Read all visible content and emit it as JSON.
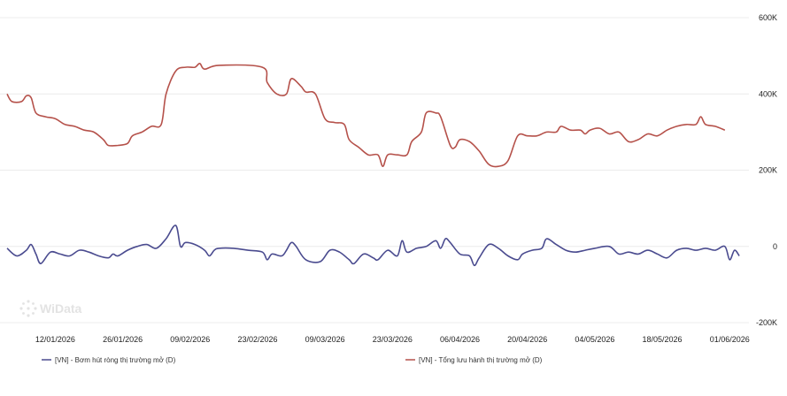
{
  "watermark": "WiData",
  "colors": {
    "outstanding": "#b5514a",
    "net": "#4a4b8f",
    "grid": "#ececec"
  },
  "chart_data": {
    "type": "line",
    "title": "",
    "xlabel": "",
    "ylabel": "",
    "ylim": [
      -200000,
      600000
    ],
    "y_ticks": [
      {
        "value": 600000,
        "label": "600K"
      },
      {
        "value": 400000,
        "label": "400K"
      },
      {
        "value": 200000,
        "label": "200K"
      },
      {
        "value": 0,
        "label": "0"
      },
      {
        "value": -200000,
        "label": "-200K"
      }
    ],
    "x_range": [
      "2026-01-02",
      "2026-06-05"
    ],
    "x_ticks": [
      "12/01/2026",
      "26/01/2026",
      "09/02/2026",
      "23/02/2026",
      "09/03/2026",
      "23/03/2026",
      "06/04/2026",
      "20/04/2026",
      "04/05/2026",
      "18/05/2026",
      "01/06/2026"
    ],
    "grid": "horizontal",
    "legend_position": "bottom",
    "series": [
      {
        "name": "[VN] - Bơm hút ròng thị trường mở (D)",
        "color": "#4a4b8f",
        "points": [
          [
            "2026-01-02",
            -5000
          ],
          [
            "2026-01-04",
            -25000
          ],
          [
            "2026-01-06",
            -10000
          ],
          [
            "2026-01-07",
            5000
          ],
          [
            "2026-01-08",
            -20000
          ],
          [
            "2026-01-09",
            -45000
          ],
          [
            "2026-01-11",
            -15000
          ],
          [
            "2026-01-13",
            -20000
          ],
          [
            "2026-01-15",
            -25000
          ],
          [
            "2026-01-17",
            -10000
          ],
          [
            "2026-01-19",
            -15000
          ],
          [
            "2026-01-21",
            -25000
          ],
          [
            "2026-01-23",
            -30000
          ],
          [
            "2026-01-24",
            -20000
          ],
          [
            "2026-01-25",
            -25000
          ],
          [
            "2026-01-27",
            -10000
          ],
          [
            "2026-01-29",
            0
          ],
          [
            "2026-01-31",
            5000
          ],
          [
            "2026-02-02",
            -5000
          ],
          [
            "2026-02-04",
            20000
          ],
          [
            "2026-02-06",
            55000
          ],
          [
            "2026-02-07",
            0
          ],
          [
            "2026-02-08",
            10000
          ],
          [
            "2026-02-10",
            5000
          ],
          [
            "2026-02-12",
            -10000
          ],
          [
            "2026-02-13",
            -25000
          ],
          [
            "2026-02-14",
            -10000
          ],
          [
            "2026-02-15",
            -5000
          ],
          [
            "2026-02-18",
            -5000
          ],
          [
            "2026-02-21",
            -10000
          ],
          [
            "2026-02-24",
            -15000
          ],
          [
            "2026-02-25",
            -35000
          ],
          [
            "2026-02-26",
            -20000
          ],
          [
            "2026-02-28",
            -25000
          ],
          [
            "2026-03-01",
            -10000
          ],
          [
            "2026-03-02",
            10000
          ],
          [
            "2026-03-03",
            0
          ],
          [
            "2026-03-05",
            -35000
          ],
          [
            "2026-03-08",
            -40000
          ],
          [
            "2026-03-10",
            -10000
          ],
          [
            "2026-03-12",
            -15000
          ],
          [
            "2026-03-14",
            -35000
          ],
          [
            "2026-03-15",
            -45000
          ],
          [
            "2026-03-17",
            -20000
          ],
          [
            "2026-03-19",
            -30000
          ],
          [
            "2026-03-20",
            -35000
          ],
          [
            "2026-03-22",
            -10000
          ],
          [
            "2026-03-24",
            -25000
          ],
          [
            "2026-03-25",
            15000
          ],
          [
            "2026-03-26",
            -15000
          ],
          [
            "2026-03-28",
            -5000
          ],
          [
            "2026-03-30",
            0
          ],
          [
            "2026-04-01",
            15000
          ],
          [
            "2026-04-02",
            -5000
          ],
          [
            "2026-04-03",
            20000
          ],
          [
            "2026-04-04",
            10000
          ],
          [
            "2026-04-06",
            -20000
          ],
          [
            "2026-04-08",
            -25000
          ],
          [
            "2026-04-09",
            -50000
          ],
          [
            "2026-04-10",
            -30000
          ],
          [
            "2026-04-12",
            5000
          ],
          [
            "2026-04-14",
            -5000
          ],
          [
            "2026-04-16",
            -25000
          ],
          [
            "2026-04-18",
            -35000
          ],
          [
            "2026-04-19",
            -20000
          ],
          [
            "2026-04-21",
            -10000
          ],
          [
            "2026-04-23",
            -5000
          ],
          [
            "2026-04-24",
            20000
          ],
          [
            "2026-04-26",
            5000
          ],
          [
            "2026-04-28",
            -10000
          ],
          [
            "2026-04-30",
            -15000
          ],
          [
            "2026-05-02",
            -10000
          ],
          [
            "2026-05-04",
            -5000
          ],
          [
            "2026-05-07",
            0
          ],
          [
            "2026-05-09",
            -20000
          ],
          [
            "2026-05-11",
            -15000
          ],
          [
            "2026-05-13",
            -20000
          ],
          [
            "2026-05-15",
            -10000
          ],
          [
            "2026-05-17",
            -20000
          ],
          [
            "2026-05-19",
            -30000
          ],
          [
            "2026-05-21",
            -10000
          ],
          [
            "2026-05-23",
            -5000
          ],
          [
            "2026-05-25",
            -10000
          ],
          [
            "2026-05-27",
            -5000
          ],
          [
            "2026-05-29",
            -10000
          ],
          [
            "2026-05-31",
            0
          ],
          [
            "2026-06-01",
            -35000
          ],
          [
            "2026-06-02",
            -10000
          ],
          [
            "2026-06-03",
            -25000
          ]
        ]
      },
      {
        "name": "[VN] - Tổng lưu hành thị trường mở (D)",
        "color": "#b5514a",
        "points": [
          [
            "2026-01-02",
            400000
          ],
          [
            "2026-01-03",
            380000
          ],
          [
            "2026-01-05",
            380000
          ],
          [
            "2026-01-06",
            395000
          ],
          [
            "2026-01-07",
            390000
          ],
          [
            "2026-01-08",
            350000
          ],
          [
            "2026-01-10",
            340000
          ],
          [
            "2026-01-12",
            335000
          ],
          [
            "2026-01-14",
            320000
          ],
          [
            "2026-01-16",
            315000
          ],
          [
            "2026-01-18",
            305000
          ],
          [
            "2026-01-20",
            300000
          ],
          [
            "2026-01-22",
            280000
          ],
          [
            "2026-01-23",
            265000
          ],
          [
            "2026-01-25",
            265000
          ],
          [
            "2026-01-27",
            270000
          ],
          [
            "2026-01-28",
            290000
          ],
          [
            "2026-01-30",
            300000
          ],
          [
            "2026-02-01",
            315000
          ],
          [
            "2026-02-03",
            320000
          ],
          [
            "2026-02-04",
            400000
          ],
          [
            "2026-02-06",
            460000
          ],
          [
            "2026-02-08",
            470000
          ],
          [
            "2026-02-10",
            470000
          ],
          [
            "2026-02-11",
            480000
          ],
          [
            "2026-02-12",
            465000
          ],
          [
            "2026-02-15",
            475000
          ],
          [
            "2026-02-24",
            470000
          ],
          [
            "2026-02-25",
            430000
          ],
          [
            "2026-02-27",
            400000
          ],
          [
            "2026-03-01",
            400000
          ],
          [
            "2026-03-02",
            440000
          ],
          [
            "2026-03-04",
            420000
          ],
          [
            "2026-03-05",
            405000
          ],
          [
            "2026-03-07",
            400000
          ],
          [
            "2026-03-09",
            335000
          ],
          [
            "2026-03-11",
            325000
          ],
          [
            "2026-03-13",
            320000
          ],
          [
            "2026-03-14",
            280000
          ],
          [
            "2026-03-16",
            260000
          ],
          [
            "2026-03-18",
            240000
          ],
          [
            "2026-03-20",
            240000
          ],
          [
            "2026-03-21",
            210000
          ],
          [
            "2026-03-22",
            240000
          ],
          [
            "2026-03-24",
            240000
          ],
          [
            "2026-03-26",
            240000
          ],
          [
            "2026-03-27",
            275000
          ],
          [
            "2026-03-29",
            300000
          ],
          [
            "2026-03-30",
            350000
          ],
          [
            "2026-04-01",
            350000
          ],
          [
            "2026-04-02",
            340000
          ],
          [
            "2026-04-04",
            265000
          ],
          [
            "2026-04-05",
            260000
          ],
          [
            "2026-04-06",
            280000
          ],
          [
            "2026-04-08",
            275000
          ],
          [
            "2026-04-10",
            250000
          ],
          [
            "2026-04-12",
            215000
          ],
          [
            "2026-04-14",
            210000
          ],
          [
            "2026-04-16",
            225000
          ],
          [
            "2026-04-18",
            290000
          ],
          [
            "2026-04-20",
            290000
          ],
          [
            "2026-04-22",
            290000
          ],
          [
            "2026-04-24",
            300000
          ],
          [
            "2026-04-26",
            300000
          ],
          [
            "2026-04-27",
            315000
          ],
          [
            "2026-04-29",
            305000
          ],
          [
            "2026-05-01",
            305000
          ],
          [
            "2026-05-02",
            295000
          ],
          [
            "2026-05-03",
            305000
          ],
          [
            "2026-05-05",
            310000
          ],
          [
            "2026-05-07",
            295000
          ],
          [
            "2026-05-09",
            300000
          ],
          [
            "2026-05-11",
            275000
          ],
          [
            "2026-05-13",
            280000
          ],
          [
            "2026-05-15",
            295000
          ],
          [
            "2026-05-17",
            290000
          ],
          [
            "2026-05-19",
            305000
          ],
          [
            "2026-05-21",
            315000
          ],
          [
            "2026-05-23",
            320000
          ],
          [
            "2026-05-25",
            320000
          ],
          [
            "2026-05-26",
            340000
          ],
          [
            "2026-05-27",
            320000
          ],
          [
            "2026-05-29",
            315000
          ],
          [
            "2026-05-31",
            305000
          ]
        ]
      }
    ]
  }
}
